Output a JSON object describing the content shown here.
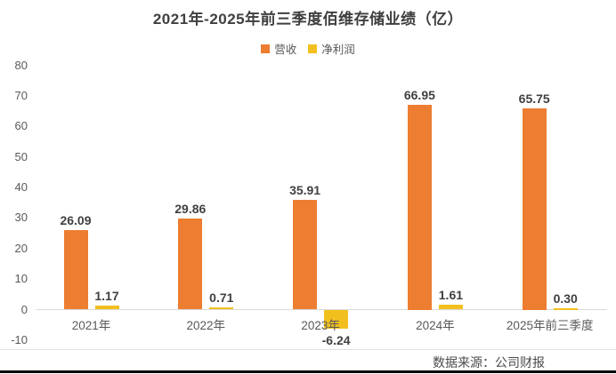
{
  "page": {
    "title": "2021年-2025年前三季度佰维存储业绩（亿）",
    "source_note": "数据来源：公司财报"
  },
  "chart_data": {
    "type": "bar",
    "title": "2021年-2025年前三季度佰维存储业绩（亿）",
    "categories": [
      "2021年",
      "2022年",
      "2023年",
      "2024年",
      "2025年前三季度"
    ],
    "series": [
      {
        "name": "营收",
        "color": "#ED7D31",
        "values": [
          26.09,
          29.86,
          35.91,
          66.95,
          65.75
        ]
      },
      {
        "name": "净利润",
        "color": "#F2C01E",
        "values": [
          1.17,
          0.71,
          -6.24,
          1.61,
          0.3
        ]
      }
    ],
    "value_labels": {
      "营收": [
        "26.09",
        "29.86",
        "35.91",
        "66.95",
        "65.75"
      ],
      "净利润": [
        "1.17",
        "0.71",
        "-6.24",
        "1.61",
        "0.30"
      ]
    },
    "ylim": [
      -10,
      80
    ],
    "ytick_step": 10,
    "yticks": [
      80,
      70,
      60,
      50,
      40,
      30,
      20,
      10,
      0,
      -10
    ],
    "grid": false,
    "legend_position": "top-center",
    "plot_background": "#FFFFFF",
    "axis_color": "#D9D9D9",
    "title_color": "#3F3F3F",
    "tick_label_color": "#595959",
    "value_label_color": "#404040",
    "source_note": "数据来源：公司财报",
    "bottom_rule_color": "#000000"
  }
}
